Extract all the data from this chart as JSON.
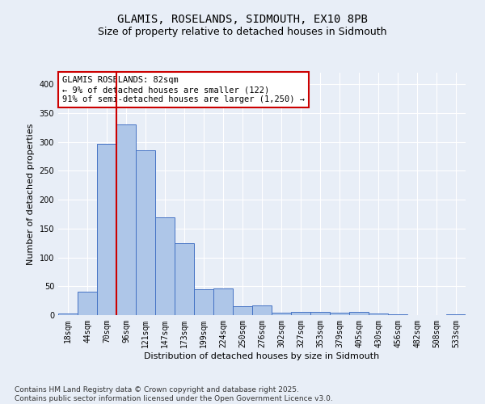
{
  "title_line1": "GLAMIS, ROSELANDS, SIDMOUTH, EX10 8PB",
  "title_line2": "Size of property relative to detached houses in Sidmouth",
  "xlabel": "Distribution of detached houses by size in Sidmouth",
  "ylabel": "Number of detached properties",
  "categories": [
    "18sqm",
    "44sqm",
    "70sqm",
    "96sqm",
    "121sqm",
    "147sqm",
    "173sqm",
    "199sqm",
    "224sqm",
    "250sqm",
    "276sqm",
    "302sqm",
    "327sqm",
    "353sqm",
    "379sqm",
    "405sqm",
    "430sqm",
    "456sqm",
    "482sqm",
    "508sqm",
    "533sqm"
  ],
  "values": [
    3,
    40,
    297,
    330,
    285,
    170,
    125,
    45,
    46,
    16,
    17,
    4,
    6,
    5,
    4,
    6,
    3,
    1,
    0,
    0,
    1
  ],
  "bar_color": "#aec6e8",
  "bar_edge_color": "#4472c4",
  "background_color": "#e8eef7",
  "vline_x_index": 2,
  "vline_color": "#cc0000",
  "annotation_text": "GLAMIS ROSELANDS: 82sqm\n← 9% of detached houses are smaller (122)\n91% of semi-detached houses are larger (1,250) →",
  "annotation_box_color": "#ffffff",
  "annotation_box_edge": "#cc0000",
  "ylim": [
    0,
    420
  ],
  "yticks": [
    0,
    50,
    100,
    150,
    200,
    250,
    300,
    350,
    400
  ],
  "footer_text": "Contains HM Land Registry data © Crown copyright and database right 2025.\nContains public sector information licensed under the Open Government Licence v3.0.",
  "grid_color": "#ffffff",
  "title_fontsize": 10,
  "subtitle_fontsize": 9,
  "axis_label_fontsize": 8,
  "tick_fontsize": 7,
  "annotation_fontsize": 7.5,
  "footer_fontsize": 6.5
}
